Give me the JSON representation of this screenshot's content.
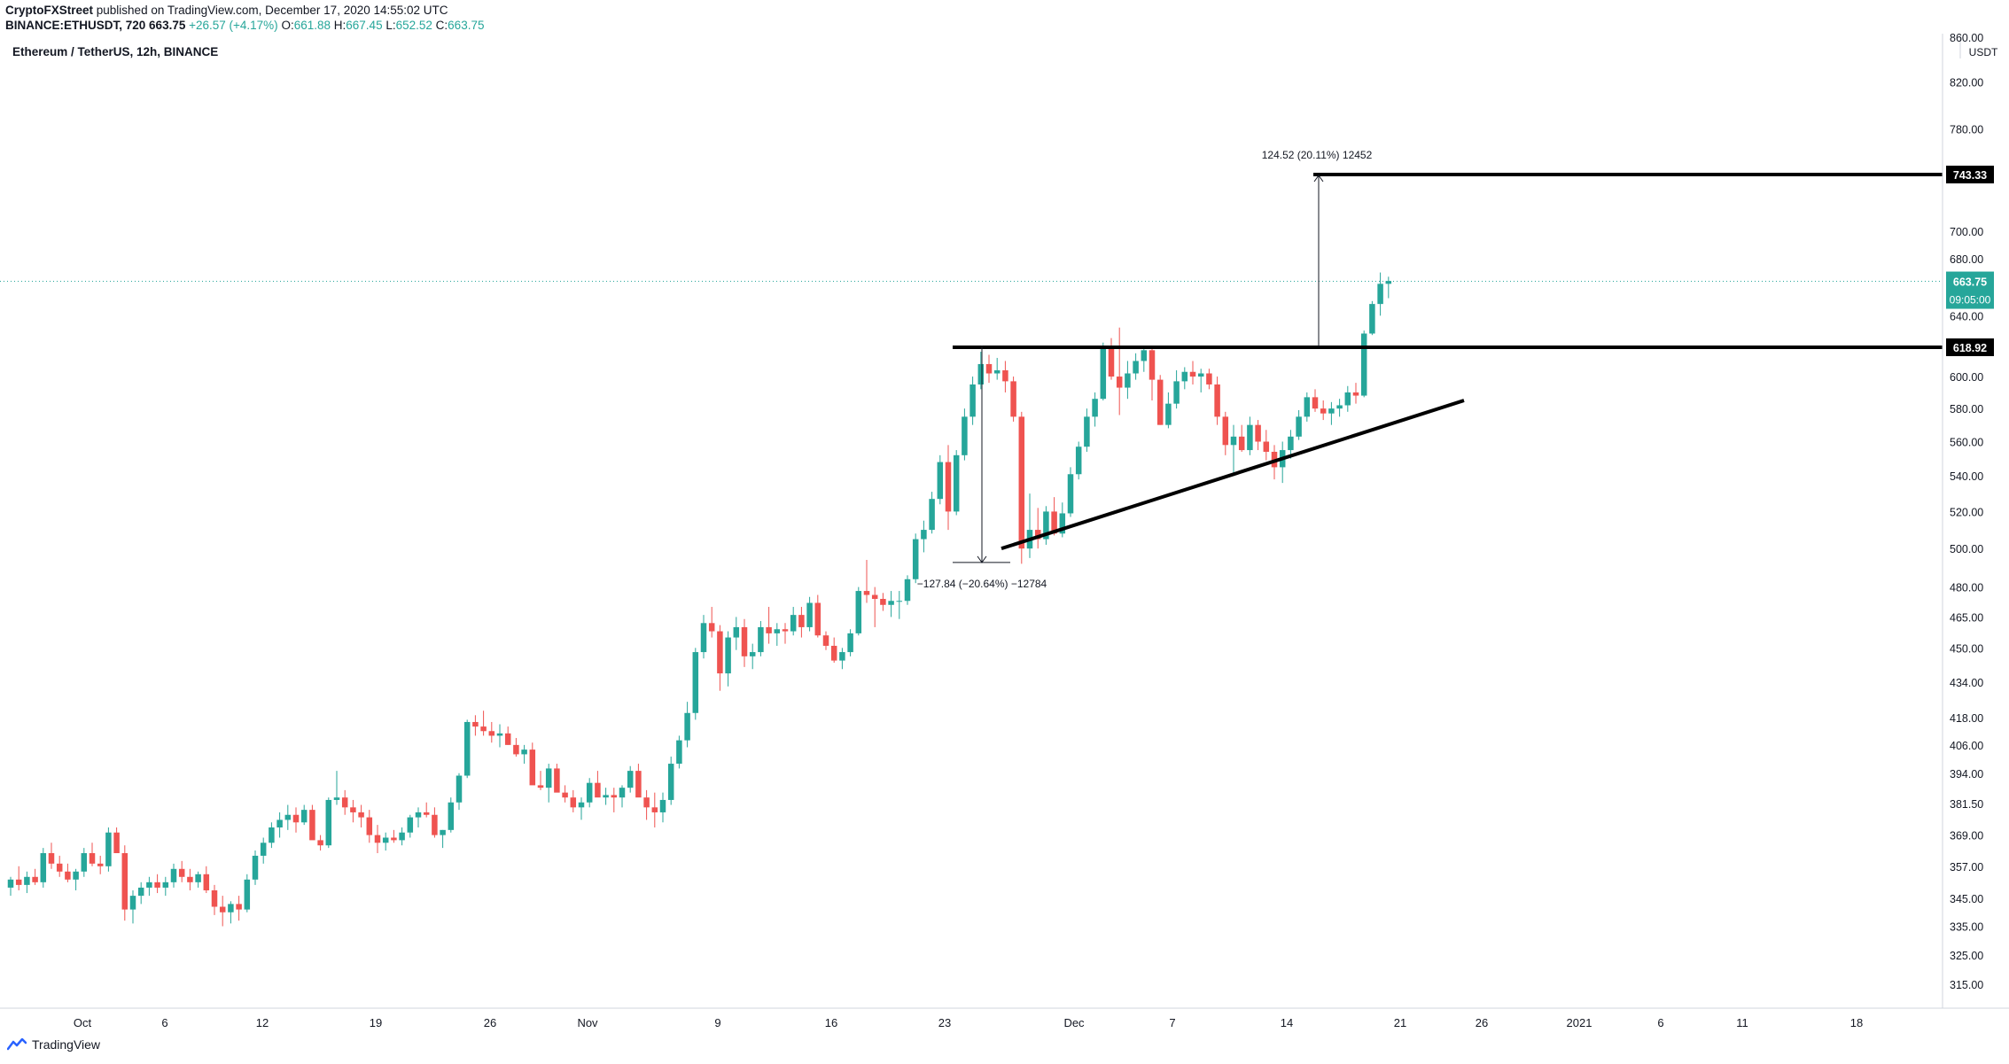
{
  "header": {
    "publisher": "CryptoFXStreet",
    "published_text": "published on TradingView.com, December 17, 2020 14:55:02 UTC",
    "symbol": "BINANCE:ETHUSDT, 720",
    "last": "663.75",
    "change": "+26.57 (+4.17%)",
    "ohlc": {
      "o_label": "O:",
      "o": "661.88",
      "h_label": "H:",
      "h": "667.45",
      "l_label": "L:",
      "l": "652.52",
      "c_label": "C:",
      "c": "663.75"
    }
  },
  "footer": {
    "brand": "TradingView"
  },
  "colors": {
    "up": "#26a69a",
    "down": "#ef5350",
    "line": "#000000",
    "axis_text": "#131722",
    "badge_green": "#26a69a",
    "badge_dark": "#000000"
  },
  "chart_data": {
    "type": "candlestick",
    "title": "Ethereum / TetherUS, 12h, BINANCE",
    "interval": "12h",
    "currency": "USDT",
    "y_scale": "log",
    "ylim": [
      305,
      860
    ],
    "x_tick_labels": [
      "Oct",
      "6",
      "12",
      "19",
      "26",
      "Nov",
      "9",
      "16",
      "23",
      "Dec",
      "7",
      "14",
      "21",
      "26",
      "2021",
      "6",
      "11",
      "18"
    ],
    "y_tick_labels": [
      "860.00",
      "820.00",
      "780.00",
      "743.33",
      "700.00",
      "680.00",
      "663.75",
      "640.00",
      "618.92",
      "600.00",
      "580.00",
      "560.00",
      "540.00",
      "520.00",
      "500.00",
      "480.00",
      "465.00",
      "450.00",
      "434.00",
      "418.00",
      "406.00",
      "394.00",
      "381.50",
      "369.00",
      "357.00",
      "345.00",
      "335.00",
      "325.00",
      "315.00"
    ],
    "price_tags": {
      "last_price": "663.75",
      "countdown": "09:05:00",
      "resistance_upper": "743.33",
      "resistance_lower": "618.92"
    },
    "levels": [
      {
        "name": "upper horizontal level",
        "price": 743.33
      },
      {
        "name": "lower horizontal level",
        "price": 618.92
      }
    ],
    "trendline": {
      "from_price": 500,
      "to_price": 585
    },
    "annotations": [
      {
        "text": "124.52 (20.11%) 12452",
        "from_price": 619,
        "to_price": 743.33
      },
      {
        "text": "−127.84 (−20.64%) −12784",
        "from_price": 620,
        "to_price": 495
      }
    ],
    "candles": [
      [
        349,
        353,
        346,
        352
      ],
      [
        352,
        357,
        348,
        350
      ],
      [
        350,
        355,
        347,
        353
      ],
      [
        353,
        356,
        350,
        351
      ],
      [
        351,
        364,
        349,
        362
      ],
      [
        362,
        366,
        356,
        358
      ],
      [
        358,
        361,
        353,
        355
      ],
      [
        355,
        358,
        351,
        352
      ],
      [
        352,
        356,
        348,
        355
      ],
      [
        355,
        364,
        353,
        362
      ],
      [
        362,
        366,
        357,
        358
      ],
      [
        358,
        361,
        354,
        357
      ],
      [
        357,
        372,
        355,
        370
      ],
      [
        370,
        372,
        363,
        362
      ],
      [
        362,
        365,
        337,
        341
      ],
      [
        341,
        348,
        336,
        346
      ],
      [
        346,
        351,
        343,
        349
      ],
      [
        349,
        353,
        346,
        351
      ],
      [
        351,
        354,
        347,
        349
      ],
      [
        349,
        353,
        346,
        351
      ],
      [
        351,
        358,
        349,
        356
      ],
      [
        356,
        359,
        351,
        353
      ],
      [
        353,
        356,
        348,
        351
      ],
      [
        351,
        355,
        349,
        354
      ],
      [
        354,
        357,
        347,
        348
      ],
      [
        348,
        350,
        339,
        342
      ],
      [
        342,
        346,
        335,
        340
      ],
      [
        340,
        344,
        336,
        343
      ],
      [
        343,
        346,
        337,
        341
      ],
      [
        341,
        354,
        340,
        352
      ],
      [
        352,
        363,
        350,
        361
      ],
      [
        361,
        368,
        358,
        366
      ],
      [
        366,
        374,
        364,
        372
      ],
      [
        372,
        378,
        368,
        375
      ],
      [
        375,
        381,
        371,
        377
      ],
      [
        377,
        380,
        370,
        374
      ],
      [
        374,
        381,
        373,
        379
      ],
      [
        379,
        381,
        369,
        367
      ],
      [
        367,
        369,
        363,
        365
      ],
      [
        365,
        384,
        364,
        383
      ],
      [
        383,
        395,
        381,
        384
      ],
      [
        384,
        387,
        377,
        380
      ],
      [
        380,
        383,
        374,
        378
      ],
      [
        378,
        381,
        372,
        376
      ],
      [
        376,
        379,
        366,
        369
      ],
      [
        369,
        373,
        362,
        366
      ],
      [
        366,
        370,
        363,
        368
      ],
      [
        368,
        371,
        366,
        367
      ],
      [
        367,
        372,
        365,
        370
      ],
      [
        370,
        377,
        368,
        376
      ],
      [
        376,
        380,
        372,
        378
      ],
      [
        378,
        382,
        376,
        377
      ],
      [
        377,
        380,
        368,
        369
      ],
      [
        369,
        371,
        364,
        371
      ],
      [
        371,
        384,
        370,
        382
      ],
      [
        382,
        394,
        379,
        393
      ],
      [
        393,
        417,
        392,
        416
      ],
      [
        416,
        419,
        410,
        414
      ],
      [
        414,
        421,
        410,
        412
      ],
      [
        412,
        416,
        407,
        410
      ],
      [
        410,
        415,
        405,
        411
      ],
      [
        411,
        414,
        406,
        406
      ],
      [
        406,
        409,
        401,
        402
      ],
      [
        402,
        406,
        398,
        404
      ],
      [
        404,
        407,
        392,
        389
      ],
      [
        389,
        395,
        387,
        388
      ],
      [
        388,
        398,
        382,
        396
      ],
      [
        396,
        398,
        387,
        386
      ],
      [
        386,
        389,
        382,
        384
      ],
      [
        384,
        387,
        378,
        380
      ],
      [
        380,
        384,
        375,
        382
      ],
      [
        382,
        392,
        380,
        390
      ],
      [
        390,
        395,
        385,
        384
      ],
      [
        384,
        388,
        381,
        385
      ],
      [
        385,
        388,
        378,
        384
      ],
      [
        384,
        389,
        380,
        388
      ],
      [
        388,
        397,
        386,
        395
      ],
      [
        395,
        398,
        387,
        384
      ],
      [
        384,
        387,
        375,
        380
      ],
      [
        380,
        386,
        372,
        378
      ],
      [
        378,
        386,
        374,
        383
      ],
      [
        383,
        401,
        381,
        398
      ],
      [
        398,
        410,
        396,
        408
      ],
      [
        408,
        425,
        405,
        420
      ],
      [
        420,
        450,
        417,
        448
      ],
      [
        448,
        466,
        445,
        462
      ],
      [
        462,
        470,
        455,
        458
      ],
      [
        458,
        461,
        430,
        438
      ],
      [
        438,
        458,
        432,
        455
      ],
      [
        455,
        465,
        449,
        460
      ],
      [
        460,
        464,
        441,
        446
      ],
      [
        446,
        452,
        440,
        448
      ],
      [
        448,
        463,
        446,
        460
      ],
      [
        460,
        470,
        452,
        457
      ],
      [
        457,
        462,
        451,
        459
      ],
      [
        459,
        462,
        452,
        458
      ],
      [
        458,
        470,
        456,
        466
      ],
      [
        466,
        470,
        455,
        460
      ],
      [
        460,
        475,
        458,
        472
      ],
      [
        472,
        476,
        455,
        456
      ],
      [
        456,
        458,
        449,
        451
      ],
      [
        451,
        455,
        443,
        444
      ],
      [
        444,
        450,
        440,
        448
      ],
      [
        448,
        459,
        446,
        457
      ],
      [
        457,
        480,
        456,
        478
      ],
      [
        478,
        494,
        472,
        476
      ],
      [
        476,
        480,
        460,
        474
      ],
      [
        474,
        477,
        468,
        471
      ],
      [
        471,
        478,
        465,
        473
      ],
      [
        473,
        478,
        464,
        473
      ],
      [
        473,
        486,
        471,
        484
      ],
      [
        484,
        508,
        482,
        505
      ],
      [
        505,
        515,
        498,
        510
      ],
      [
        510,
        531,
        508,
        527
      ],
      [
        527,
        552,
        524,
        548
      ],
      [
        548,
        558,
        510,
        520
      ],
      [
        520,
        555,
        518,
        552
      ],
      [
        552,
        580,
        549,
        575
      ],
      [
        575,
        600,
        570,
        595
      ],
      [
        595,
        616,
        592,
        608
      ],
      [
        608,
        614,
        596,
        602
      ],
      [
        602,
        612,
        598,
        604
      ],
      [
        604,
        610,
        590,
        597
      ],
      [
        597,
        600,
        572,
        575
      ],
      [
        575,
        578,
        492,
        500
      ],
      [
        500,
        530,
        495,
        510
      ],
      [
        510,
        522,
        500,
        505
      ],
      [
        505,
        523,
        502,
        520
      ],
      [
        520,
        528,
        507,
        508
      ],
      [
        508,
        525,
        506,
        519
      ],
      [
        519,
        545,
        517,
        541
      ],
      [
        541,
        560,
        538,
        557
      ],
      [
        557,
        580,
        554,
        575
      ],
      [
        575,
        590,
        569,
        586
      ],
      [
        586,
        622,
        585,
        618
      ],
      [
        618,
        625,
        598,
        600
      ],
      [
        600,
        632,
        576,
        593
      ],
      [
        593,
        610,
        586,
        602
      ],
      [
        602,
        615,
        598,
        610
      ],
      [
        610,
        620,
        603,
        617
      ],
      [
        617,
        618,
        585,
        598
      ],
      [
        598,
        601,
        570,
        570
      ],
      [
        570,
        590,
        568,
        583
      ],
      [
        583,
        604,
        580,
        597
      ],
      [
        597,
        606,
        592,
        603
      ],
      [
        603,
        610,
        595,
        600
      ],
      [
        600,
        605,
        590,
        602
      ],
      [
        602,
        605,
        592,
        595
      ],
      [
        595,
        600,
        570,
        575
      ],
      [
        575,
        578,
        552,
        558
      ],
      [
        558,
        570,
        540,
        563
      ],
      [
        563,
        570,
        554,
        555
      ],
      [
        555,
        575,
        552,
        570
      ],
      [
        570,
        573,
        555,
        560
      ],
      [
        560,
        567,
        549,
        554
      ],
      [
        554,
        558,
        538,
        545
      ],
      [
        545,
        560,
        536,
        555
      ],
      [
        555,
        567,
        550,
        563
      ],
      [
        563,
        579,
        561,
        575
      ],
      [
        575,
        590,
        572,
        587
      ],
      [
        587,
        592,
        578,
        580
      ],
      [
        580,
        585,
        573,
        577
      ],
      [
        577,
        584,
        570,
        580
      ],
      [
        580,
        586,
        575,
        582
      ],
      [
        582,
        594,
        578,
        590
      ],
      [
        590,
        596,
        583,
        588
      ],
      [
        588,
        630,
        587,
        628
      ],
      [
        628,
        650,
        627,
        648
      ],
      [
        648,
        670,
        640,
        662
      ],
      [
        662,
        667,
        652,
        664
      ]
    ]
  }
}
